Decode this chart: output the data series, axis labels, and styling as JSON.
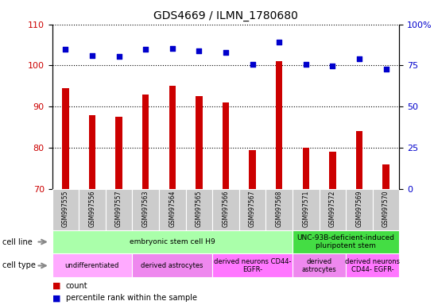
{
  "title": "GDS4669 / ILMN_1780680",
  "samples": [
    "GSM997555",
    "GSM997556",
    "GSM997557",
    "GSM997563",
    "GSM997564",
    "GSM997565",
    "GSM997566",
    "GSM997567",
    "GSM997568",
    "GSM997571",
    "GSM997572",
    "GSM997569",
    "GSM997570"
  ],
  "counts": [
    94.5,
    88.0,
    87.5,
    93.0,
    95.0,
    92.5,
    91.0,
    79.5,
    101.0,
    80.0,
    79.0,
    84.0,
    76.0
  ],
  "percentile_ranks": [
    85.0,
    81.0,
    80.5,
    85.0,
    85.5,
    84.0,
    83.0,
    75.5,
    89.0,
    75.5,
    74.5,
    79.0,
    73.0
  ],
  "ymin": 70,
  "ymax": 110,
  "yticks": [
    70,
    80,
    90,
    100,
    110
  ],
  "right_yticks": [
    0,
    25,
    50,
    75,
    100
  ],
  "bar_color": "#cc0000",
  "dot_color": "#0000cc",
  "tick_label_color_left": "#cc0000",
  "tick_label_color_right": "#0000cc",
  "cell_line_groups": [
    {
      "label": "embryonic stem cell H9",
      "start": 0,
      "end": 9,
      "color": "#aaffaa"
    },
    {
      "label": "UNC-93B-deficient-induced\npluripotent stem",
      "start": 9,
      "end": 13,
      "color": "#44dd44"
    }
  ],
  "cell_type_groups": [
    {
      "label": "undifferentiated",
      "start": 0,
      "end": 3,
      "color": "#ffaaff"
    },
    {
      "label": "derived astrocytes",
      "start": 3,
      "end": 6,
      "color": "#ee88ee"
    },
    {
      "label": "derived neurons CD44-\nEGFR-",
      "start": 6,
      "end": 9,
      "color": "#ff77ff"
    },
    {
      "label": "derived\nastrocytes",
      "start": 9,
      "end": 11,
      "color": "#ee88ee"
    },
    {
      "label": "derived neurons\nCD44- EGFR-",
      "start": 11,
      "end": 13,
      "color": "#ff77ff"
    }
  ],
  "bar_width": 0.25,
  "dot_size": 22,
  "title_fontsize": 10
}
